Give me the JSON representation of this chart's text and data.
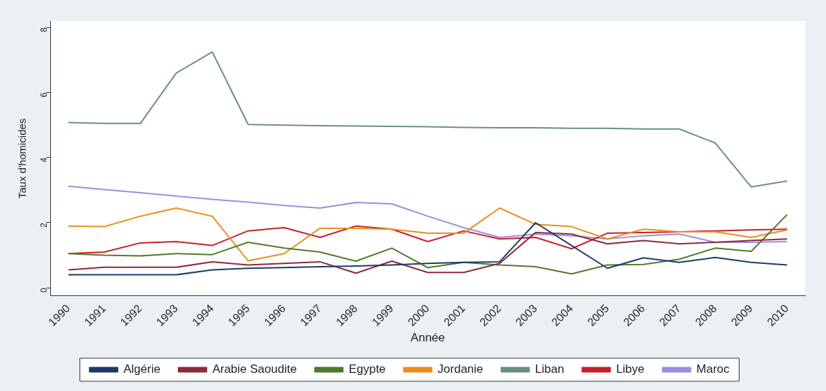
{
  "chart_data": {
    "type": "line",
    "xlabel": "Année",
    "ylabel": "Taux d'homicides",
    "categories": [
      "1990",
      "1991",
      "1992",
      "1993",
      "1994",
      "1995",
      "1996",
      "1997",
      "1998",
      "1999",
      "2000",
      "2001",
      "2002",
      "2003",
      "2004",
      "2005",
      "2006",
      "2007",
      "2008",
      "2009",
      "2010"
    ],
    "ylim": [
      -0.25,
      8.2
    ],
    "yticks": [
      0,
      2,
      4,
      6,
      8
    ],
    "grid": false,
    "legend": "bottom",
    "marker": "none",
    "line_style": "solid",
    "series": [
      {
        "name": "Algérie",
        "color": "#1a3a6b",
        "values": [
          0.4,
          0.4,
          0.4,
          0.4,
          0.55,
          0.6,
          0.62,
          0.65,
          0.67,
          0.7,
          0.75,
          0.78,
          0.8,
          2.0,
          1.3,
          0.6,
          0.92,
          0.78,
          0.93,
          0.78,
          0.7
        ]
      },
      {
        "name": "Arabie Saoudite",
        "color": "#8b2a3a",
        "values": [
          0.55,
          0.63,
          0.63,
          0.63,
          0.8,
          0.7,
          0.75,
          0.8,
          0.45,
          0.82,
          0.47,
          0.47,
          0.75,
          1.7,
          1.65,
          1.35,
          1.45,
          1.35,
          1.4,
          1.45,
          1.5
        ]
      },
      {
        "name": "Egypte",
        "color": "#4f7a28",
        "values": [
          1.05,
          1.0,
          0.98,
          1.05,
          1.02,
          1.4,
          1.22,
          1.1,
          0.82,
          1.22,
          0.62,
          0.78,
          0.7,
          0.65,
          0.43,
          0.7,
          0.72,
          0.88,
          1.22,
          1.12,
          2.25
        ]
      },
      {
        "name": "Jordanie",
        "color": "#e8901a",
        "values": [
          1.9,
          1.88,
          2.2,
          2.45,
          2.2,
          0.83,
          1.05,
          1.83,
          1.83,
          1.8,
          1.68,
          1.68,
          2.45,
          1.95,
          1.88,
          1.5,
          1.8,
          1.72,
          1.72,
          1.55,
          1.78
        ]
      },
      {
        "name": "Liban",
        "color": "#6a9080",
        "values": [
          5.08,
          5.05,
          5.05,
          6.6,
          7.25,
          5.02,
          5.0,
          4.98,
          4.97,
          4.96,
          4.95,
          4.93,
          4.92,
          4.92,
          4.9,
          4.9,
          4.88,
          4.88,
          4.45,
          3.1,
          3.28
        ]
      },
      {
        "name": "Libye",
        "color": "#c8202a",
        "values": [
          1.05,
          1.1,
          1.38,
          1.42,
          1.3,
          1.75,
          1.85,
          1.55,
          1.9,
          1.8,
          1.42,
          1.75,
          1.5,
          1.55,
          1.2,
          1.68,
          1.7,
          1.72,
          1.75,
          1.78,
          1.8
        ]
      },
      {
        "name": "Maroc",
        "color": "#9a8ee0",
        "values": [
          3.12,
          3.02,
          2.92,
          2.82,
          2.72,
          2.63,
          2.53,
          2.45,
          2.62,
          2.58,
          2.2,
          1.85,
          1.55,
          1.65,
          1.6,
          1.5,
          1.6,
          1.65,
          1.4,
          1.4,
          1.42
        ]
      }
    ]
  }
}
